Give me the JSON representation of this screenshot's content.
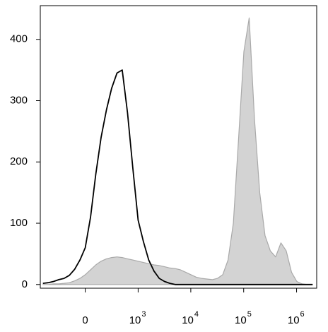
{
  "chart_data": {
    "type": "histogram",
    "xscale": "biexponential",
    "x": [
      -621,
      -486,
      -377,
      -287,
      -214,
      -151,
      -96,
      -47,
      0,
      47,
      96,
      151,
      214,
      287,
      377,
      486,
      621,
      789,
      1000,
      1264,
      1594,
      2010,
      2533,
      3190,
      4019,
      5061,
      6371,
      8022,
      10100,
      12700,
      16000,
      20200,
      25400,
      31900,
      40200,
      50600,
      63700,
      80200,
      101000,
      127000,
      160000,
      201000,
      253000,
      319000,
      402000,
      506000,
      637000,
      802000,
      1010000,
      1270000,
      1600000,
      2010000
    ],
    "series": [
      {
        "color": "#a9a9a9",
        "fill": "#d3d3d3",
        "values": [
          0,
          0,
          1,
          1,
          2,
          3,
          6,
          10,
          16,
          24,
          32,
          38,
          42,
          44,
          45,
          44,
          42,
          40,
          38,
          36,
          34,
          32,
          31,
          29,
          27,
          26,
          24,
          20,
          16,
          12,
          10,
          9,
          8,
          10,
          16,
          40,
          100,
          240,
          380,
          435,
          270,
          150,
          80,
          55,
          45,
          68,
          55,
          20,
          5,
          1,
          0,
          0
        ]
      },
      {
        "color": "#000000",
        "fill": "none",
        "values": [
          2,
          3,
          5,
          8,
          10,
          15,
          25,
          40,
          60,
          110,
          180,
          240,
          285,
          320,
          345,
          350,
          280,
          190,
          105,
          70,
          40,
          22,
          10,
          5,
          2,
          0,
          0,
          0,
          0,
          0,
          0,
          0,
          0,
          0,
          0,
          0,
          0,
          0,
          0,
          0,
          0,
          0,
          0,
          0,
          0,
          0,
          0,
          0,
          0,
          0,
          0,
          0
        ]
      }
    ],
    "xlim": [
      -700,
      2400000
    ],
    "xticks": [
      0,
      {
        "value": 1000,
        "label": "10",
        "sup": "3"
      },
      {
        "value": 10000,
        "label": "10",
        "sup": "4"
      },
      {
        "value": 100000,
        "label": "10",
        "sup": "5"
      },
      {
        "value": 1000000,
        "label": "10",
        "sup": "6"
      }
    ],
    "ylim": [
      -6,
      455
    ],
    "yticks": [
      0,
      100,
      200,
      300,
      400
    ]
  }
}
